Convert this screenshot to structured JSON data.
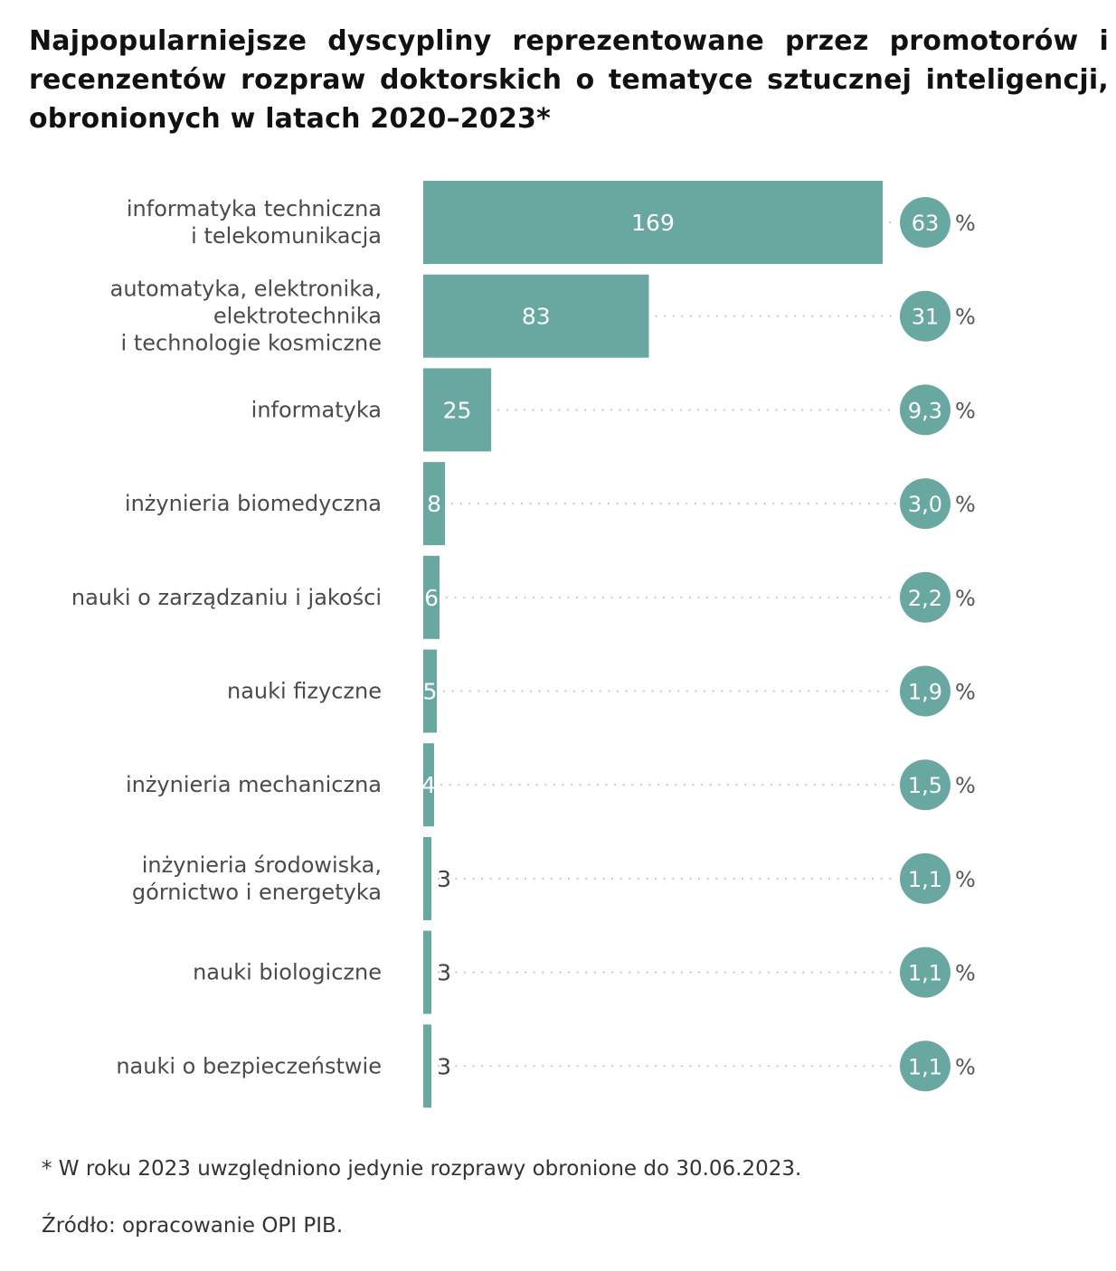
{
  "title": "Najpopularniejsze dyscypliny reprezentowane przez promotorów i recenzentów rozpraw doktorskich o tematyce sztucznej inteligencji, obronionych w latach 2020–2023*",
  "colors": {
    "bar": "#69a8a0",
    "bubble": "#69a8a0",
    "dots": "#c8c8c8"
  },
  "chart_data": {
    "type": "bar",
    "orientation": "horizontal",
    "categories": [
      "informatyka techniczna\ni telekomunikacja",
      "automatyka, elektronika,\nelektrotechnika\ni technologie kosmiczne",
      "informatyka",
      "inżynieria biomedyczna",
      "nauki o zarządzaniu i jakości",
      "nauki fizyczne",
      "inżynieria mechaniczna",
      "inżynieria środowiska,\ngórnictwo i energetyka",
      "nauki biologiczne",
      "nauki o bezpieczeństwie"
    ],
    "values": [
      169,
      83,
      25,
      8,
      6,
      5,
      4,
      3,
      3,
      3
    ],
    "value_labels": [
      "169",
      "83",
      "25",
      "8",
      "6",
      "5",
      "4",
      "3",
      "3",
      "3"
    ],
    "percent_labels": [
      "63",
      "31",
      "9,3",
      "3,0",
      "2,2",
      "1,9",
      "1,5",
      "1,1",
      "1,1",
      "1,1"
    ],
    "percent_sign": "%",
    "xlim": [
      0,
      169
    ],
    "grid": false,
    "legend": "none"
  },
  "footnote": "* W roku 2023 uwzględniono jedynie rozprawy obronione do 30.06.2023.",
  "source": "Źródło: opracowanie OPI PIB."
}
